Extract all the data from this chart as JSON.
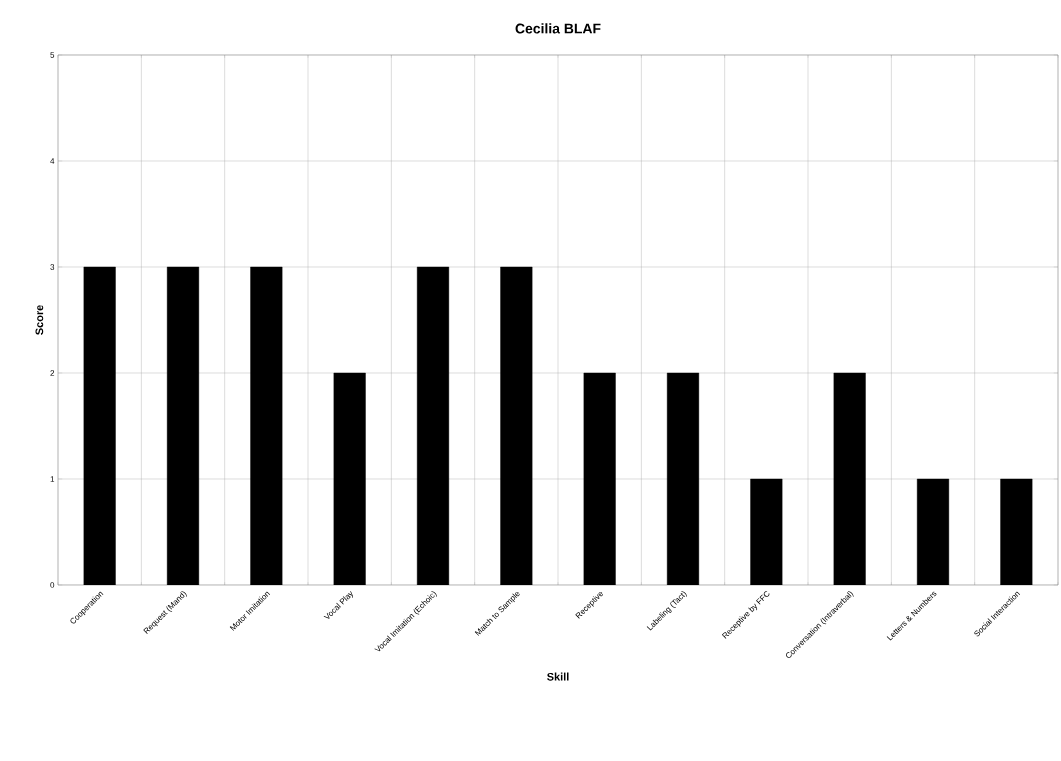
{
  "chart_data": {
    "type": "bar",
    "title": "Cecilia BLAF",
    "xlabel": "Skill",
    "ylabel": "Score",
    "categories": [
      "Cooperation",
      "Request (Mand)",
      "Motor Imitation",
      "Vocal Play",
      "Vocal Imitation (Echoic)",
      "Match to Sample",
      "Receptive",
      "Labeling (Tact)",
      "Receptive by FFC",
      "Conversation (Intraverbal)",
      "Letters & Numbers",
      "Social Interaction"
    ],
    "values": [
      3,
      3,
      3,
      2,
      3,
      3,
      2,
      2,
      1,
      2,
      1,
      1
    ],
    "color": "#000000",
    "ylim": [
      0,
      5
    ],
    "yticks": [
      0,
      1,
      2,
      3,
      4,
      5
    ],
    "grid": true
  }
}
